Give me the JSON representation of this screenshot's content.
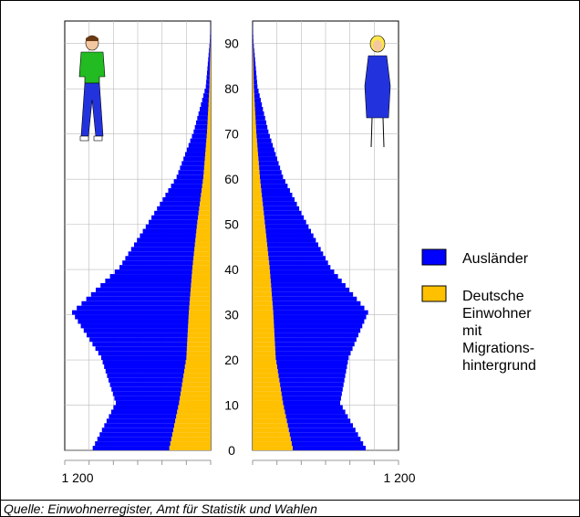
{
  "chart_data": {
    "type": "population-pyramid",
    "y_ticks": [
      0,
      10,
      20,
      30,
      40,
      50,
      60,
      70,
      80,
      90
    ],
    "x_tick_label_left": "1 200",
    "x_tick_label_right": "1 200",
    "xlim": [
      0,
      1200
    ],
    "ylim": [
      0,
      95
    ],
    "legend": [
      {
        "name": "Ausländer",
        "color": "#0000ff"
      },
      {
        "name_lines": [
          "Deutsche",
          "Einwohner",
          "mit",
          "Migrations-",
          "hintergrund"
        ],
        "color": "#ffc000"
      }
    ],
    "men": {
      "age_groups": [
        0,
        10,
        20,
        30,
        40,
        50,
        60,
        70,
        80,
        90
      ],
      "auslaender": [
        630,
        520,
        700,
        960,
        600,
        400,
        220,
        110,
        30,
        5
      ],
      "deutsche_migration": [
        340,
        260,
        200,
        180,
        150,
        110,
        60,
        30,
        10,
        2
      ]
    },
    "women": {
      "age_groups": [
        0,
        10,
        20,
        30,
        40,
        50,
        60,
        70,
        80,
        90
      ],
      "auslaender": [
        600,
        470,
        600,
        780,
        500,
        340,
        190,
        100,
        30,
        5
      ],
      "deutsche_migration": [
        330,
        250,
        190,
        170,
        140,
        100,
        60,
        30,
        10,
        2
      ]
    }
  },
  "source": "Quelle: Einwohnerregister, Amt für Statistik und Wahlen"
}
